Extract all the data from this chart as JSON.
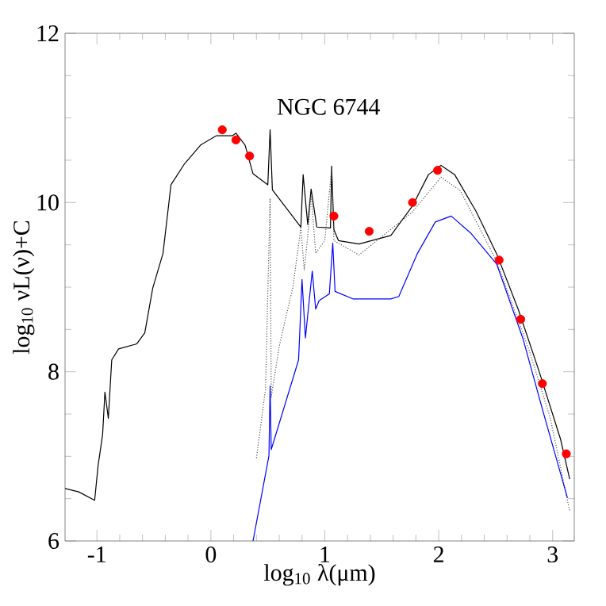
{
  "chart_data": {
    "type": "line",
    "xlabel": "log$_{10}$ λ(μm)",
    "ylabel": "log$_{10}$ νL(ν)+C",
    "annotations": [
      "NGC 6744"
    ],
    "xlim": [
      -1.28,
      3.19
    ],
    "ylim": [
      6,
      12
    ],
    "xticks": [
      -1,
      0,
      1,
      2,
      3
    ],
    "yticks": [
      6,
      8,
      10,
      12
    ],
    "series": [
      {
        "color": "#000000",
        "line_style": "solid",
        "marker": "none",
        "x": [
          -1.28,
          -1.16,
          -1.02,
          -0.99,
          -0.95,
          -0.93,
          -0.9,
          -0.87,
          -0.81,
          -0.65,
          -0.58,
          -0.51,
          -0.42,
          -0.35,
          -0.23,
          -0.09,
          0.05,
          0.19,
          0.22,
          0.3,
          0.37,
          0.5,
          0.52,
          0.54,
          0.79,
          0.81,
          0.85,
          0.88,
          0.93,
          1.05,
          1.06,
          1.08,
          1.12,
          1.3,
          1.58,
          1.77,
          1.91,
          2.02,
          2.14,
          2.33,
          2.51,
          2.7,
          2.88,
          3.07,
          3.15
        ],
        "values": [
          6.62,
          6.58,
          6.48,
          6.89,
          7.26,
          7.76,
          7.45,
          8.14,
          8.27,
          8.33,
          8.46,
          8.99,
          9.4,
          10.21,
          10.46,
          10.68,
          10.79,
          10.79,
          10.82,
          10.68,
          10.34,
          10.21,
          10.86,
          10.15,
          9.71,
          10.33,
          9.74,
          10.16,
          9.71,
          9.7,
          10.43,
          9.68,
          9.55,
          9.51,
          9.61,
          9.96,
          10.33,
          10.44,
          10.33,
          9.89,
          9.39,
          8.73,
          8.01,
          7.2,
          6.73
        ]
      },
      {
        "color": "#555555",
        "line_style": "dotted",
        "marker": "none",
        "x": [
          0.4,
          0.48,
          0.52,
          0.53,
          0.6,
          0.72,
          0.79,
          0.82,
          0.85,
          0.88,
          0.92,
          1.0,
          1.06,
          1.08,
          1.3,
          1.77,
          2.02,
          2.19,
          2.51,
          2.79,
          2.98,
          3.15
        ],
        "values": [
          6.98,
          7.8,
          10.05,
          7.7,
          8.3,
          9.0,
          9.7,
          9.2,
          9.6,
          10.1,
          9.4,
          9.55,
          10.4,
          9.55,
          9.38,
          9.89,
          10.3,
          10.14,
          9.3,
          8.27,
          7.45,
          6.35
        ]
      },
      {
        "color": "#0000ff",
        "line_style": "solid",
        "marker": "none",
        "x": [
          0.37,
          0.51,
          0.52,
          0.53,
          0.77,
          0.8,
          0.83,
          0.89,
          0.92,
          0.95,
          1.04,
          1.07,
          1.09,
          1.25,
          1.58,
          1.65,
          1.81,
          1.97,
          2.11,
          2.28,
          2.51,
          2.74,
          2.92,
          3.13
        ],
        "values": [
          6.0,
          7.01,
          7.83,
          7.08,
          8.14,
          9.09,
          8.4,
          9.19,
          8.74,
          8.84,
          8.92,
          9.52,
          8.95,
          8.86,
          8.86,
          8.89,
          9.39,
          9.77,
          9.84,
          9.64,
          9.27,
          8.39,
          7.51,
          6.51
        ]
      },
      {
        "type": "scatter",
        "color": "#ff0000",
        "marker": "circle",
        "x": [
          0.1,
          0.22,
          0.34,
          1.08,
          1.39,
          1.77,
          1.99,
          2.53,
          2.72,
          2.91,
          3.12
        ],
        "values": [
          10.86,
          10.74,
          10.55,
          9.84,
          9.66,
          10.0,
          10.38,
          9.32,
          8.62,
          7.86,
          7.03
        ]
      }
    ]
  }
}
